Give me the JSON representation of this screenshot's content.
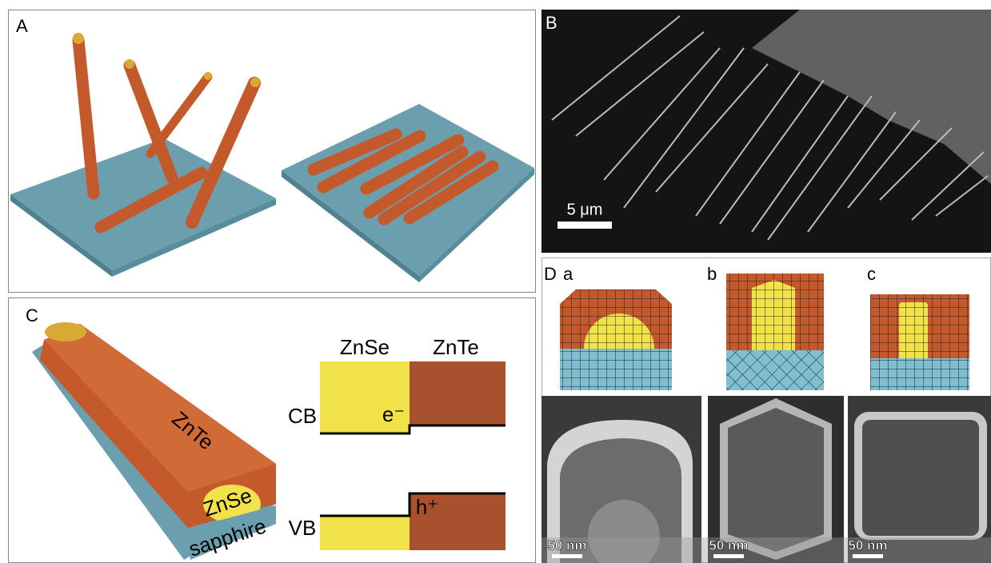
{
  "panels": {
    "a": {
      "label": "A"
    },
    "b": {
      "label": "B",
      "scale_bar": "5 μm"
    },
    "c": {
      "label": "C",
      "wire": {
        "shell": "ZnTe",
        "core": "ZnSe",
        "substrate": "sapphire"
      },
      "band": {
        "left": "ZnSe",
        "right": "ZnTe",
        "cb": "CB",
        "electron": "e⁻",
        "vb": "VB",
        "hole": "h⁺"
      }
    },
    "d": {
      "label": "D",
      "sub": [
        "a",
        "b",
        "c"
      ],
      "scale_bars": [
        "50 nm",
        "50 nm",
        "50 nm"
      ]
    }
  }
}
